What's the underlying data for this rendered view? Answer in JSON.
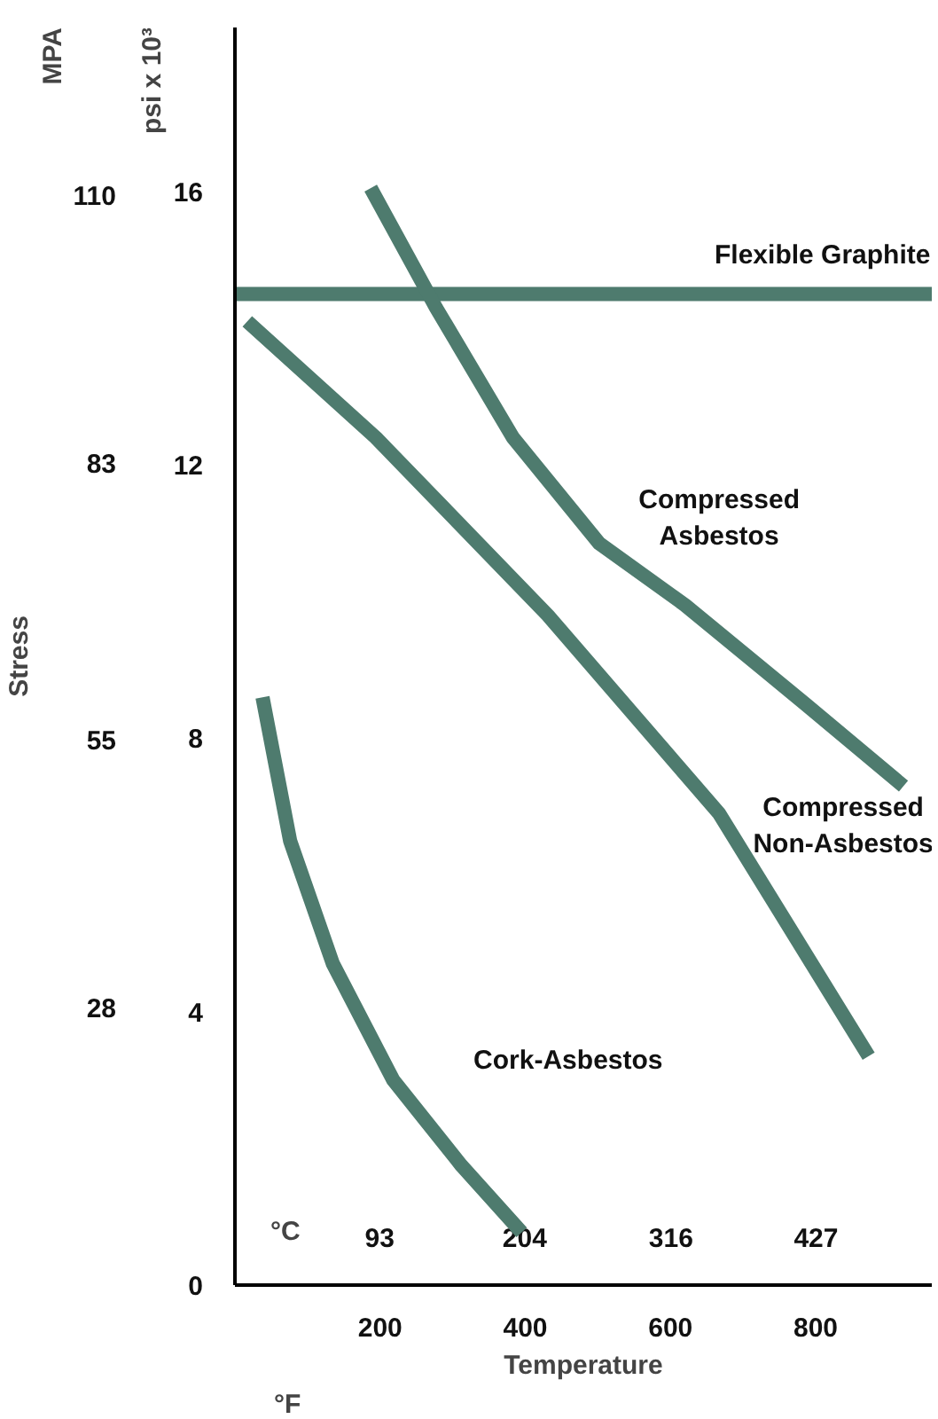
{
  "chart_data": {
    "type": "line",
    "xlabel": "Temperature",
    "ylabel": "psi x 10³",
    "y2label": "MPA",
    "xlim": [
      0,
      960
    ],
    "xticks": [
      200,
      400,
      600,
      800
    ],
    "x2lim": [
      -17.8,
      515.6
    ],
    "x2ticks": [
      93,
      204,
      316,
      427
    ],
    "ylim": [
      0,
      18.4
    ],
    "yticks": [
      0,
      4,
      8,
      12,
      16
    ],
    "y2lim": [
      0,
      126.9
    ],
    "y2ticks": [
      28,
      55,
      83,
      110
    ],
    "grid": false,
    "legend": false,
    "marker": "none",
    "line_style": "solid",
    "annotations": [
      "Stress",
      "°C",
      "°F"
    ],
    "series": [
      {
        "name": "Flexible Graphite",
        "color": "#4e7b6e",
        "x": [
          0,
          960
        ],
        "values": [
          14.5,
          14.5
        ]
      },
      {
        "name": "Compressed\nAsbestos",
        "color": "#4e7b6e",
        "x": [
          187,
          277,
          383,
          502,
          620,
          786,
          921
        ],
        "values": [
          16.05,
          14.3,
          12.4,
          10.85,
          9.95,
          8.5,
          7.3
        ]
      },
      {
        "name": "Compressed\nNon-Asbestos",
        "color": "#4e7b6e",
        "x": [
          17,
          194,
          431,
          667,
          873
        ],
        "values": [
          14.1,
          12.4,
          9.8,
          6.9,
          3.35
        ]
      },
      {
        "name": "Cork-Asbestos",
        "color": "#4e7b6e",
        "x": [
          38,
          76,
          135,
          218,
          312,
          395
        ],
        "values": [
          8.6,
          6.5,
          4.7,
          3.0,
          1.75,
          0.77
        ]
      }
    ]
  }
}
